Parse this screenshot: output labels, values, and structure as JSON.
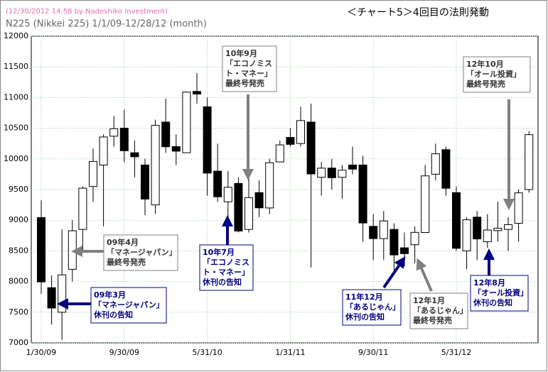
{
  "chart_data": {
    "type": "candlestick",
    "caption": "(12/30/2012 14:58 by Nadeshiko Investment)",
    "subtitle": "N225 (Nikkei 225)  1/1/09-12/28/12 (month)",
    "title": "＜チャート5＞4回目の法則発動",
    "categories": [
      "1/30/09",
      null,
      null,
      null,
      null,
      null,
      null,
      null,
      "9/30/09",
      null,
      null,
      null,
      null,
      null,
      null,
      null,
      "5/31/10",
      null,
      null,
      null,
      null,
      null,
      null,
      null,
      "1/31/11",
      null,
      null,
      null,
      null,
      null,
      null,
      null,
      "9/30/11",
      null,
      null,
      null,
      null,
      null,
      null,
      null,
      "5/31/12",
      null,
      null,
      null,
      null,
      null,
      null,
      null
    ],
    "open": [
      9043,
      7900,
      7500,
      8200,
      8850,
      9550,
      9900,
      10370,
      10500,
      10100,
      9900,
      9250,
      10600,
      10200,
      10100,
      11100,
      10850,
      9800,
      9300,
      9600,
      8850,
      9450,
      9200,
      9950,
      10350,
      10250,
      10600,
      9700,
      9850,
      9700,
      9900,
      9900,
      8900,
      8700,
      8850,
      8550,
      8600,
      8800,
      9750,
      10150,
      9450,
      8500,
      9050,
      8650,
      8830,
      8850,
      8950,
      9500
    ],
    "high": [
      9325,
      8100,
      8850,
      9000,
      9550,
      10170,
      10400,
      10700,
      10800,
      10300,
      10000,
      10640,
      10980,
      10400,
      11100,
      11400,
      11000,
      10250,
      9800,
      9700,
      9700,
      9650,
      10000,
      10300,
      10500,
      10850,
      10900,
      9950,
      10000,
      9900,
      10200,
      10050,
      9100,
      9150,
      8950,
      8800,
      8900,
      9900,
      10250,
      10200,
      9550,
      9050,
      9150,
      9100,
      9300,
      9050,
      9500,
      10450
    ],
    "low": [
      7800,
      7300,
      7050,
      8000,
      8500,
      9300,
      8900,
      10200,
      9950,
      9700,
      9080,
      9100,
      10100,
      9900,
      10100,
      10900,
      9400,
      9300,
      9050,
      8800,
      8800,
      9050,
      9100,
      9950,
      10200,
      10200,
      8230,
      9400,
      9500,
      9350,
      9750,
      8650,
      8350,
      8350,
      8150,
      8250,
      8300,
      8800,
      9650,
      9400,
      8500,
      8200,
      8350,
      8550,
      8650,
      8500,
      8650,
      9450
    ],
    "close": [
      7994,
      7568,
      8109,
      8828,
      9522,
      9958,
      10357,
      10492,
      10133,
      10034,
      9345,
      10546,
      10198,
      10126,
      11089,
      11057,
      9768,
      9382,
      9537,
      8824,
      9369,
      9202,
      9937,
      10228,
      10237,
      10624,
      9755,
      9849,
      9693,
      9816,
      9833,
      8955,
      8700,
      8988,
      8434,
      8455,
      8802,
      9723,
      10083,
      9521,
      8542,
      9007,
      8695,
      8840,
      8870,
      8928,
      9446,
      10395
    ],
    "up_color": "#ffffff",
    "down_color": "#000000",
    "ylim": [
      7000,
      12000
    ],
    "yticks": [
      7000,
      7500,
      8000,
      8500,
      9000,
      9500,
      10000,
      10500,
      11000,
      11500,
      12000
    ],
    "grid": true,
    "annotations": [
      {
        "lines": [
          "09年3月",
          "「マネージャパン」",
          "休刊の告知"
        ],
        "color": "#000080"
      },
      {
        "lines": [
          "09年4月",
          "「マネージャパン」",
          "最終号発売"
        ],
        "color": "#808080"
      },
      {
        "lines": [
          "10年9月",
          "「エコノミス",
          "ト・マネー」",
          "最終号発売"
        ],
        "color": "#808080"
      },
      {
        "lines": [
          "10年7月",
          "「エコノミス",
          "ト・マネー」",
          "休刊の告知"
        ],
        "color": "#000080"
      },
      {
        "lines": [
          "11年12月",
          "「あるじゃん」",
          "休刊の告知"
        ],
        "color": "#000080"
      },
      {
        "lines": [
          "12年1月",
          "「あるじゃん」",
          "最終号発売"
        ],
        "color": "#808080"
      },
      {
        "lines": [
          "12年8月",
          "「オール投資」",
          "休刊の告知"
        ],
        "color": "#000080"
      },
      {
        "lines": [
          "12年10月",
          "「オール投資」",
          "最終号発売"
        ],
        "color": "#808080"
      }
    ]
  }
}
